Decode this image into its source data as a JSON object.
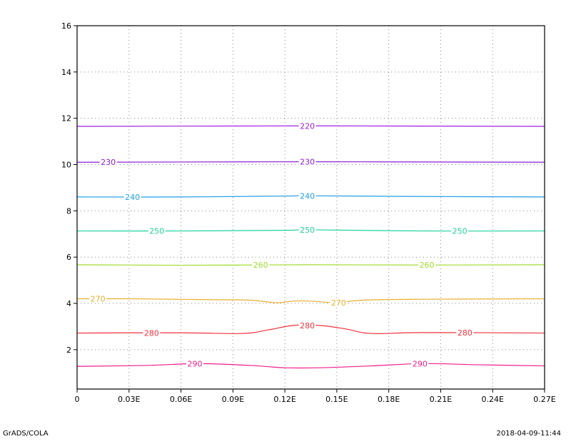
{
  "footer": {
    "left": "GrADS/COLA",
    "right": "2018-04-09-11:44"
  },
  "chart_data": {
    "type": "line",
    "subtype": "contour",
    "title": "",
    "xlabel": "",
    "ylabel": "",
    "xlim": [
      0,
      0.27
    ],
    "ylim": [
      0.3,
      16
    ],
    "x_ticks": [
      0,
      0.03,
      0.06,
      0.09,
      0.12,
      0.15,
      0.18,
      0.21,
      0.24,
      0.27
    ],
    "x_tick_labels": [
      "0",
      "0.03E",
      "0.06E",
      "0.09E",
      "0.12E",
      "0.15E",
      "0.18E",
      "0.21E",
      "0.24E",
      "0.27E"
    ],
    "y_ticks": [
      2,
      4,
      6,
      8,
      10,
      12,
      14,
      16
    ],
    "y_tick_labels": [
      "2",
      "4",
      "6",
      "8",
      "10",
      "12",
      "14",
      "16"
    ],
    "grid": true,
    "grid_style": "dotted",
    "series": [
      {
        "name": "220",
        "color": "#a01fe0",
        "points": [
          [
            0,
            11.65
          ],
          [
            0.135,
            11.67
          ],
          [
            0.27,
            11.65
          ]
        ],
        "labels_at": [
          0.133
        ]
      },
      {
        "name": "230",
        "color": "#8a1fd2",
        "points": [
          [
            0,
            10.1
          ],
          [
            0.135,
            10.12
          ],
          [
            0.27,
            10.1
          ]
        ],
        "labels_at": [
          0.018,
          0.133
        ]
      },
      {
        "name": "240",
        "color": "#1f9fe6",
        "points": [
          [
            0,
            8.6
          ],
          [
            0.06,
            8.6
          ],
          [
            0.12,
            8.64
          ],
          [
            0.135,
            8.65
          ],
          [
            0.2,
            8.62
          ],
          [
            0.27,
            8.6
          ]
        ],
        "labels_at": [
          0.032,
          0.133
        ]
      },
      {
        "name": "250",
        "color": "#1fd29e",
        "points": [
          [
            0,
            7.13
          ],
          [
            0.06,
            7.13
          ],
          [
            0.12,
            7.16
          ],
          [
            0.135,
            7.18
          ],
          [
            0.2,
            7.13
          ],
          [
            0.27,
            7.13
          ]
        ],
        "labels_at": [
          0.046,
          0.133,
          0.221
        ]
      },
      {
        "name": "260",
        "color": "#a0dc30",
        "points": [
          [
            0,
            5.67
          ],
          [
            0.06,
            5.65
          ],
          [
            0.1,
            5.66
          ],
          [
            0.135,
            5.67
          ],
          [
            0.2,
            5.66
          ],
          [
            0.27,
            5.67
          ]
        ],
        "labels_at": [
          0.106,
          0.202
        ]
      },
      {
        "name": "270",
        "color": "#e6af2e",
        "points": [
          [
            0,
            4.2
          ],
          [
            0.03,
            4.2
          ],
          [
            0.08,
            4.16
          ],
          [
            0.1,
            4.14
          ],
          [
            0.115,
            4.03
          ],
          [
            0.125,
            4.1
          ],
          [
            0.135,
            4.1
          ],
          [
            0.15,
            4.03
          ],
          [
            0.165,
            4.14
          ],
          [
            0.2,
            4.18
          ],
          [
            0.27,
            4.2
          ]
        ],
        "labels_at": [
          0.012,
          0.151
        ]
      },
      {
        "name": "280",
        "color": "#f0323c",
        "points": [
          [
            0,
            2.72
          ],
          [
            0.06,
            2.73
          ],
          [
            0.095,
            2.7
          ],
          [
            0.11,
            2.85
          ],
          [
            0.125,
            3.05
          ],
          [
            0.14,
            3.05
          ],
          [
            0.155,
            2.9
          ],
          [
            0.17,
            2.7
          ],
          [
            0.2,
            2.74
          ],
          [
            0.27,
            2.72
          ]
        ],
        "labels_at": [
          0.043,
          0.133,
          0.224
        ]
      },
      {
        "name": "290",
        "color": "#f01e8c",
        "points": [
          [
            0,
            1.28
          ],
          [
            0.04,
            1.32
          ],
          [
            0.07,
            1.4
          ],
          [
            0.1,
            1.32
          ],
          [
            0.12,
            1.22
          ],
          [
            0.14,
            1.22
          ],
          [
            0.17,
            1.3
          ],
          [
            0.2,
            1.4
          ],
          [
            0.23,
            1.35
          ],
          [
            0.27,
            1.3
          ]
        ],
        "labels_at": [
          0.068,
          0.198
        ]
      }
    ]
  }
}
